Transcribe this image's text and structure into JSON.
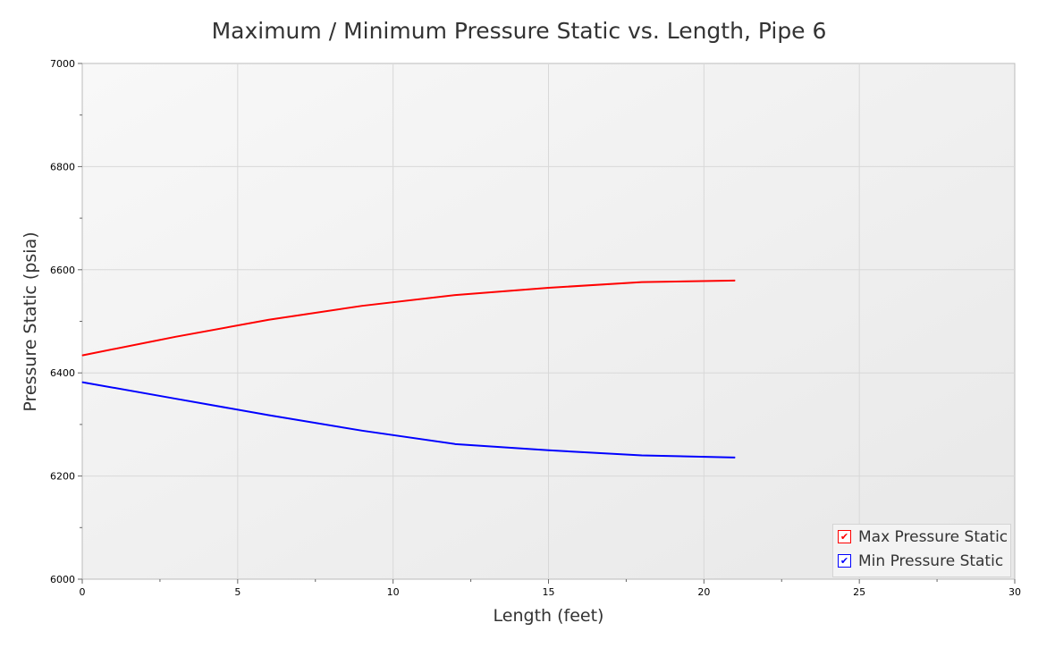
{
  "chart_data": {
    "type": "line",
    "title": "Maximum / Minimum Pressure Static vs. Length, Pipe 6",
    "xlabel": "Length (feet)",
    "ylabel": "Pressure Static (psia)",
    "xlim": [
      0,
      30
    ],
    "ylim": [
      6000,
      7000
    ],
    "xticks": [
      0,
      5,
      10,
      15,
      20,
      25,
      30
    ],
    "yticks": [
      6000,
      6200,
      6400,
      6600,
      6800,
      7000
    ],
    "grid": true,
    "legend_position": "bottom-right",
    "x": [
      0,
      3,
      6,
      9,
      12,
      15,
      18,
      21
    ],
    "series": [
      {
        "name": "Max Pressure Static",
        "color": "#ff0000",
        "values": [
          6434,
          6470,
          6503,
          6530,
          6551,
          6565,
          6576,
          6579
        ]
      },
      {
        "name": "Min Pressure Static",
        "color": "#0000ff",
        "values": [
          6382,
          6350,
          6318,
          6288,
          6262,
          6250,
          6240,
          6236
        ]
      }
    ]
  }
}
